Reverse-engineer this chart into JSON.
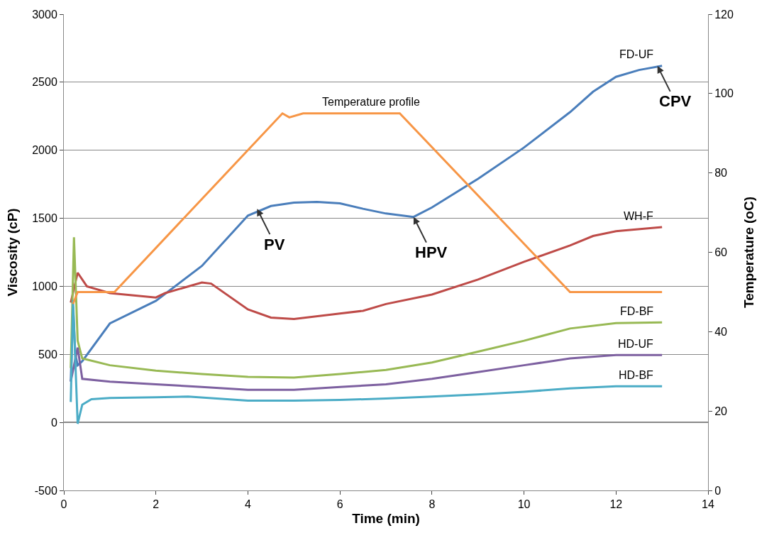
{
  "chart_data": {
    "type": "line",
    "xlabel": "Time (min)",
    "ylabel": "Viscosity (cP)",
    "y2label": "Temperature (oC)",
    "xlim": [
      0,
      14
    ],
    "xticks": [
      0,
      2,
      4,
      6,
      8,
      10,
      12,
      14
    ],
    "ylim": [
      -500,
      3000
    ],
    "yticks": [
      -500,
      0,
      500,
      1000,
      1500,
      2000,
      2500,
      3000
    ],
    "y2lim": [
      0,
      120
    ],
    "y2ticks": [
      0,
      20,
      40,
      60,
      80,
      100,
      120
    ],
    "grid": "y",
    "legend": false,
    "marker": "none",
    "line_style": "solid",
    "series": [
      {
        "name": "FD-UF",
        "color": "#4a7ebb",
        "x": [
          0.15,
          0.2,
          0.25,
          0.3,
          0.4,
          1,
          2,
          3,
          4,
          4.5,
          5,
          5.5,
          6,
          6.5,
          7,
          7.6,
          8,
          9,
          10,
          11,
          11.5,
          12,
          12.5,
          13
        ],
        "values": [
          300,
          850,
          500,
          420,
          450,
          727,
          893,
          1150,
          1520,
          1590,
          1615,
          1620,
          1610,
          1570,
          1535,
          1510,
          1580,
          1790,
          2020,
          2280,
          2430,
          2540,
          2590,
          2620
        ]
      },
      {
        "name": "Temperature profile",
        "color": "#f79646",
        "axis": "y2",
        "x": [
          0.2,
          0.3,
          1.1,
          4.75,
          4.9,
          5.2,
          7.3,
          11,
          13
        ],
        "values": [
          47,
          50,
          50,
          95,
          94,
          95,
          95,
          50,
          50
        ]
      },
      {
        "name": "WH-F",
        "color": "#be4b48",
        "x": [
          0.15,
          0.3,
          0.5,
          1,
          2,
          2.2,
          3,
          3.2,
          4,
          4.5,
          5,
          6,
          6.5,
          7,
          8,
          9,
          10,
          11,
          11.5,
          12,
          13
        ],
        "values": [
          880,
          1100,
          1000,
          950,
          918,
          950,
          1028,
          1020,
          830,
          770,
          760,
          800,
          820,
          870,
          940,
          1050,
          1180,
          1300,
          1370,
          1405,
          1435
        ]
      },
      {
        "name": "FD-BF",
        "color": "#98b954",
        "x": [
          0.15,
          0.22,
          0.3,
          0.4,
          1,
          2,
          3,
          4,
          5,
          6,
          7,
          8,
          9,
          10,
          11,
          12,
          13
        ],
        "values": [
          400,
          1360,
          600,
          470,
          420,
          380,
          355,
          335,
          330,
          355,
          385,
          440,
          520,
          600,
          690,
          730,
          735
        ]
      },
      {
        "name": "HD-UF",
        "color": "#7d60a0",
        "x": [
          0.15,
          0.3,
          0.4,
          1,
          2,
          3,
          4,
          5,
          6,
          7,
          8,
          9,
          10,
          11,
          12,
          13
        ],
        "values": [
          300,
          550,
          320,
          300,
          280,
          260,
          240,
          240,
          260,
          280,
          320,
          370,
          420,
          470,
          495,
          495
        ]
      },
      {
        "name": "HD-BF",
        "color": "#4bacc6",
        "x": [
          0.15,
          0.2,
          0.3,
          0.4,
          0.6,
          1,
          2,
          2.7,
          4,
          5,
          6,
          7,
          8,
          9,
          10,
          11,
          12,
          13
        ],
        "values": [
          150,
          900,
          -10,
          130,
          170,
          180,
          185,
          190,
          160,
          160,
          165,
          175,
          190,
          205,
          225,
          250,
          265,
          265
        ]
      }
    ],
    "annotations": [
      {
        "text": "PV",
        "x": 4.2,
        "y": 1570
      },
      {
        "text": "HPV",
        "x": 7.6,
        "y": 1510
      },
      {
        "text": "CPV",
        "x": 12.9,
        "y": 2620
      }
    ]
  }
}
